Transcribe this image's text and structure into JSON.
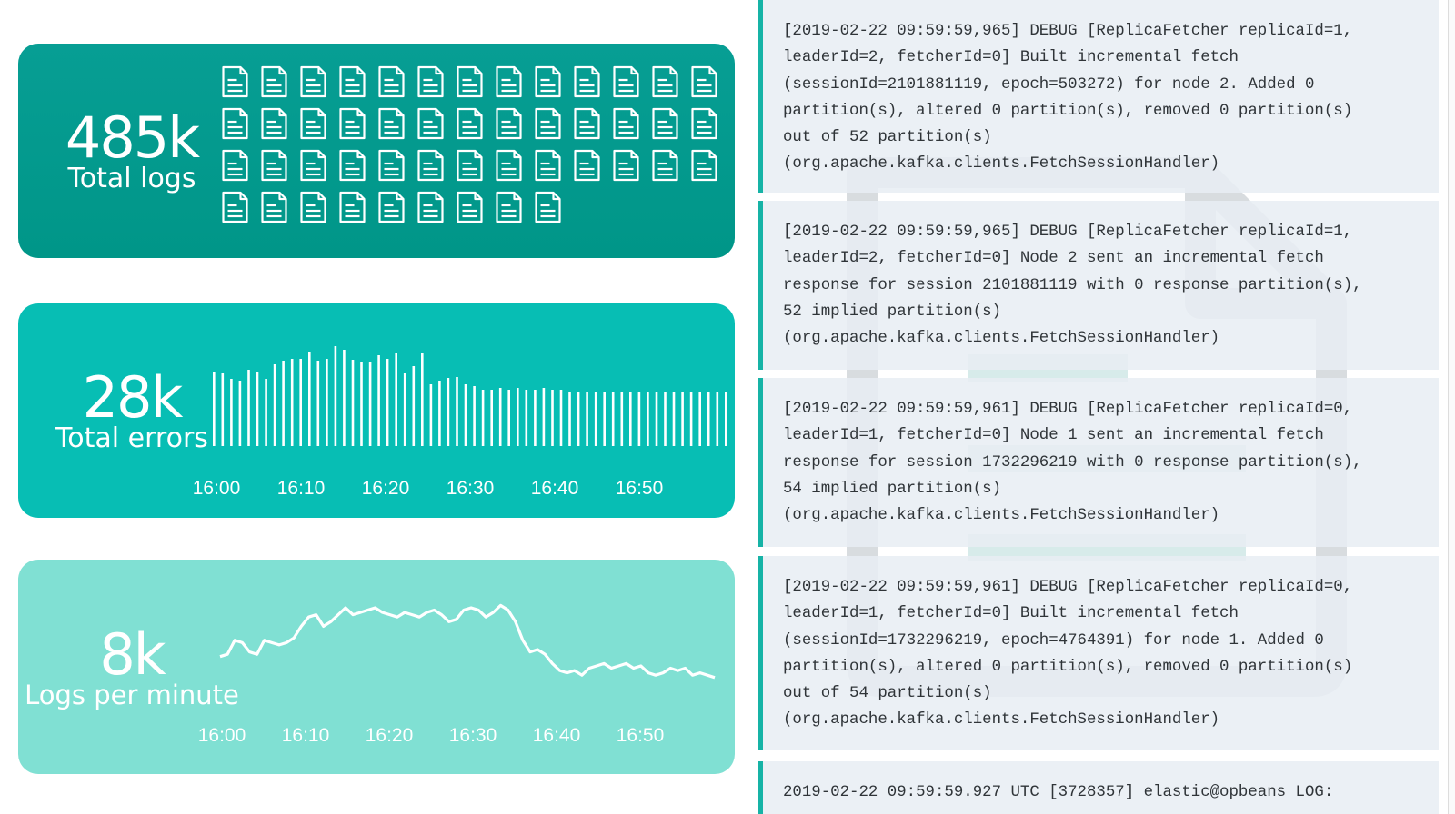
{
  "cards": {
    "total_logs": {
      "value": "485k",
      "label": "Total logs",
      "icon": "document-icon",
      "icon_count": 48,
      "color": "#009688"
    },
    "total_errors": {
      "value": "28k",
      "label": "Total errors",
      "color": "#07beb4"
    },
    "logs_per_minute": {
      "value": "8k",
      "label": "Logs per minute",
      "color": "#80e0d3"
    }
  },
  "chart_data": [
    {
      "type": "bar",
      "x_tick_labels": [
        "16:00",
        "16:10",
        "16:20",
        "16:30",
        "16:40",
        "16:50"
      ],
      "values": [
        82,
        80,
        74,
        72,
        84,
        82,
        74,
        90,
        94,
        96,
        96,
        104,
        94,
        96,
        110,
        106,
        95,
        92,
        92,
        100,
        96,
        102,
        80,
        88,
        102,
        68,
        72,
        75,
        76,
        68,
        66,
        62,
        62,
        64,
        62,
        64,
        62,
        62,
        64,
        62,
        62,
        60,
        60,
        60,
        60,
        60,
        60,
        60,
        60,
        60,
        60,
        60,
        60,
        60,
        60,
        60,
        60,
        60,
        60,
        60
      ],
      "bar_color": "#ffffff",
      "grid": false
    },
    {
      "type": "line",
      "x_tick_labels": [
        "16:00",
        "16:10",
        "16:20",
        "16:30",
        "16:40",
        "16:50"
      ],
      "values": [
        46,
        48,
        60,
        58,
        50,
        48,
        60,
        58,
        56,
        58,
        62,
        72,
        80,
        82,
        72,
        76,
        82,
        88,
        82,
        84,
        86,
        88,
        84,
        82,
        80,
        84,
        82,
        80,
        84,
        86,
        82,
        76,
        78,
        86,
        88,
        86,
        80,
        84,
        90,
        86,
        76,
        60,
        50,
        52,
        48,
        40,
        34,
        32,
        34,
        30,
        36,
        38,
        40,
        36,
        38,
        40,
        36,
        38,
        32,
        30,
        32,
        36,
        34,
        36,
        30,
        32,
        30,
        28
      ],
      "line_color": "#ffffff",
      "grid": false
    }
  ],
  "log_entries": [
    {
      "lines": [
        "[2019-02-22 09:59:59,965] DEBUG [ReplicaFetcher replicaId=1,",
        "leaderId=2, fetcherId=0] Built incremental fetch",
        "(sessionId=2101881119, epoch=503272) for node 2. Added 0",
        "partition(s), altered 0 partition(s), removed 0 partition(s)",
        "out of 52 partition(s)",
        "(org.apache.kafka.clients.FetchSessionHandler)"
      ]
    },
    {
      "lines": [
        "[2019-02-22 09:59:59,965] DEBUG [ReplicaFetcher replicaId=1,",
        "leaderId=2, fetcherId=0] Node 2 sent an incremental fetch",
        "response for session 2101881119 with 0 response partition(s),",
        "52 implied partition(s)",
        "(org.apache.kafka.clients.FetchSessionHandler)"
      ]
    },
    {
      "lines": [
        "[2019-02-22 09:59:59,961] DEBUG [ReplicaFetcher replicaId=0,",
        "leaderId=1, fetcherId=0] Node 1 sent an incremental fetch",
        "response for session 1732296219 with 0 response partition(s),",
        "54 implied partition(s)",
        "(org.apache.kafka.clients.FetchSessionHandler)"
      ]
    },
    {
      "lines": [
        "[2019-02-22 09:59:59,961] DEBUG [ReplicaFetcher replicaId=0,",
        "leaderId=1, fetcherId=0] Built incremental fetch",
        "(sessionId=1732296219, epoch=4764391) for node 1. Added 0",
        "partition(s), altered 0 partition(s), removed 0 partition(s)",
        "out of 54 partition(s)",
        "(org.apache.kafka.clients.FetchSessionHandler)"
      ]
    },
    {
      "lines": [
        "2019-02-22 09:59:59.927 UTC [3728357] elastic@opbeans LOG:"
      ]
    }
  ],
  "colors": {
    "log_background": "#e8eef3",
    "log_border": "#16b3a6",
    "log_text": "#2f3438"
  },
  "watermark_icon": "document-icon"
}
